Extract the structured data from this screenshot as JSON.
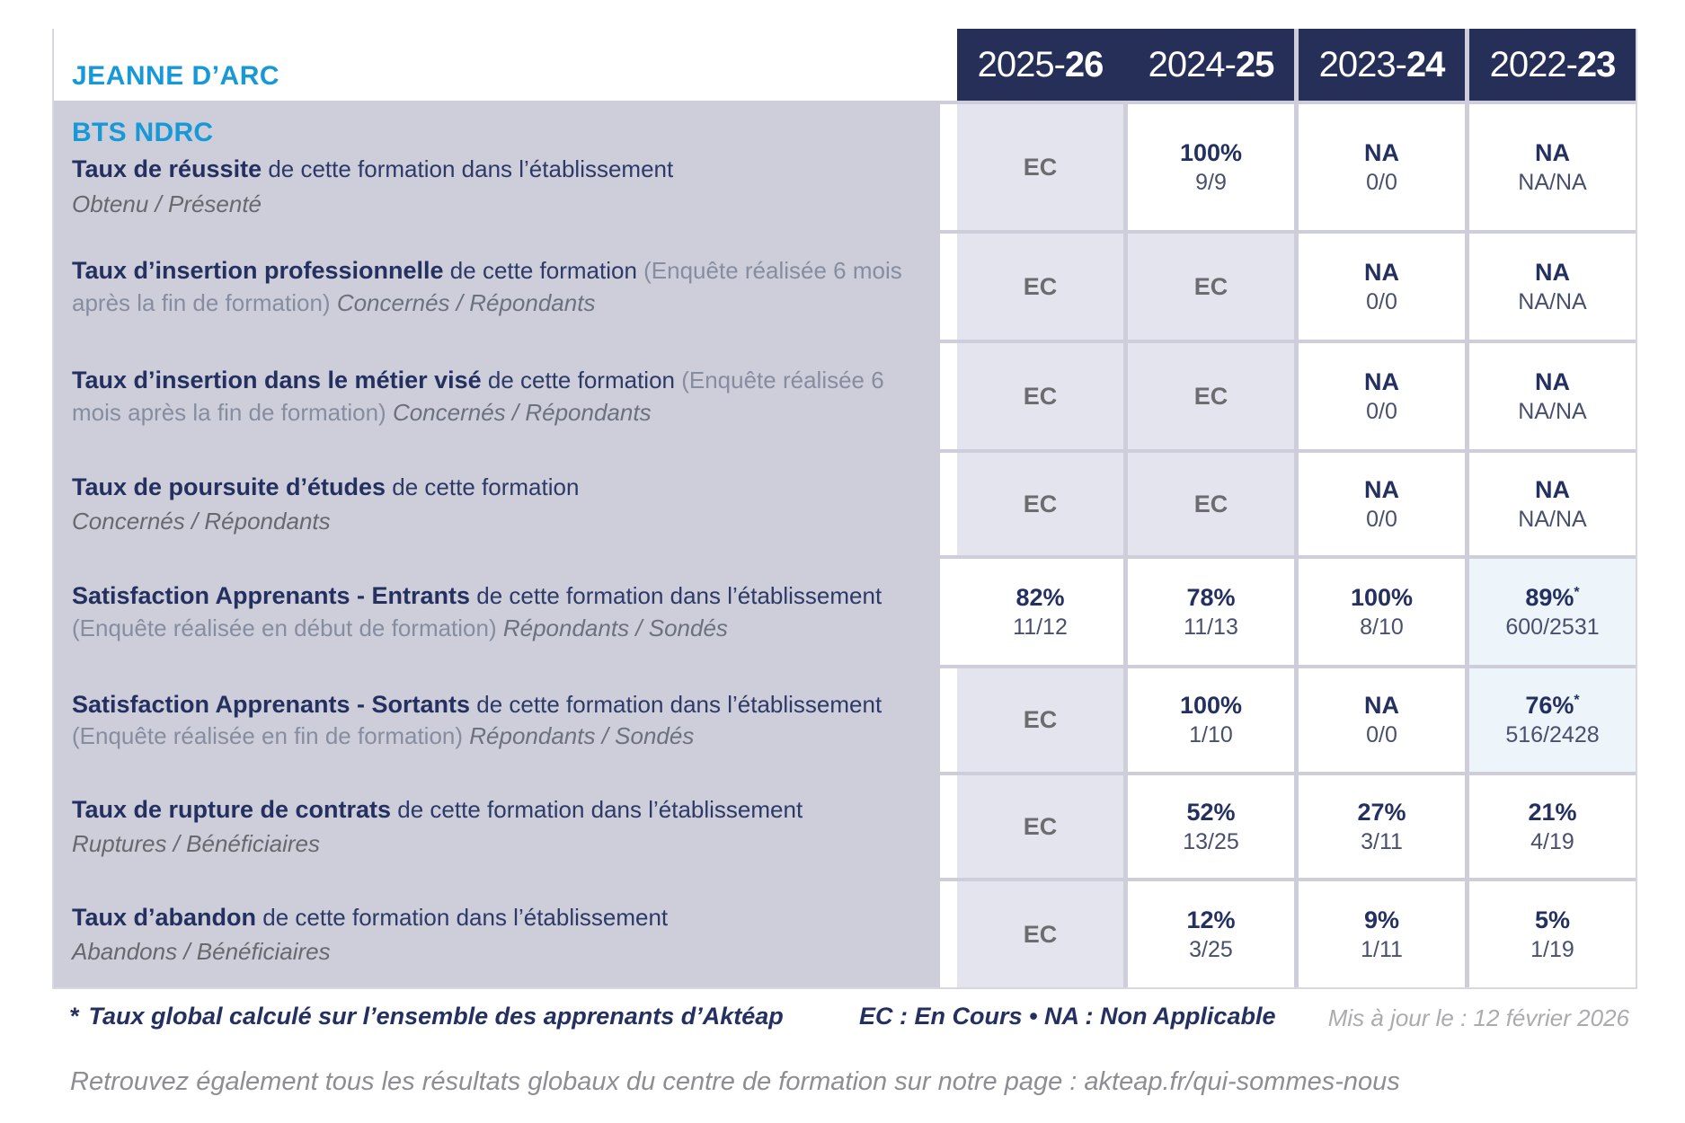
{
  "brand": {
    "name": "JEANNE D’ARC",
    "color": "#1699d6"
  },
  "columns": [
    {
      "start": "2025-",
      "end": "26"
    },
    {
      "start": "2024-",
      "end": "25"
    },
    {
      "start": "2023-",
      "end": "24"
    },
    {
      "start": "2022-",
      "end": "23"
    }
  ],
  "program": "BTS NDRC",
  "rows": [
    {
      "label": {
        "bold": "Taux de réussite",
        "rest": " de cette formation dans l’établissement",
        "paren": "",
        "tail": "",
        "sub": "Obtenu / Présenté"
      },
      "cells": [
        {
          "main": "EC",
          "frac": "",
          "star": ""
        },
        {
          "main": "100%",
          "frac": "9/9",
          "star": ""
        },
        {
          "main": "NA",
          "frac": "0/0",
          "star": ""
        },
        {
          "main": "NA",
          "frac": "NA/NA",
          "star": ""
        }
      ]
    },
    {
      "label": {
        "bold": "Taux d’insertion professionnelle",
        "rest": " de cette formation ",
        "paren": "(Enquête réalisée 6 mois après la fin de formation) ",
        "tail": "Concernés / Répondants",
        "sub": ""
      },
      "cells": [
        {
          "main": "EC",
          "frac": "",
          "star": ""
        },
        {
          "main": "EC",
          "frac": "",
          "star": ""
        },
        {
          "main": "NA",
          "frac": "0/0",
          "star": ""
        },
        {
          "main": "NA",
          "frac": "NA/NA",
          "star": ""
        }
      ]
    },
    {
      "label": {
        "bold": "Taux d’insertion dans le métier visé",
        "rest": " de cette formation ",
        "paren": "(Enquête réalisée 6 mois après la fin de formation) ",
        "tail": "Concernés / Répondants",
        "sub": ""
      },
      "cells": [
        {
          "main": "EC",
          "frac": "",
          "star": ""
        },
        {
          "main": "EC",
          "frac": "",
          "star": ""
        },
        {
          "main": "NA",
          "frac": "0/0",
          "star": ""
        },
        {
          "main": "NA",
          "frac": "NA/NA",
          "star": ""
        }
      ]
    },
    {
      "label": {
        "bold": "Taux de poursuite d’études",
        "rest": " de cette formation",
        "paren": "",
        "tail": "",
        "sub": "Concernés / Répondants"
      },
      "cells": [
        {
          "main": "EC",
          "frac": "",
          "star": ""
        },
        {
          "main": "EC",
          "frac": "",
          "star": ""
        },
        {
          "main": "NA",
          "frac": "0/0",
          "star": ""
        },
        {
          "main": "NA",
          "frac": "NA/NA",
          "star": ""
        }
      ]
    },
    {
      "label": {
        "bold": "Satisfaction Apprenants - Entrants",
        "rest": " de cette formation dans l’établissement ",
        "paren": "(Enquête réalisée en début de formation) ",
        "tail": "Répondants / Sondés",
        "sub": ""
      },
      "cells": [
        {
          "main": "82%",
          "frac": "11/12",
          "star": ""
        },
        {
          "main": "78%",
          "frac": "11/13",
          "star": ""
        },
        {
          "main": "100%",
          "frac": "8/10",
          "star": ""
        },
        {
          "main": "89%",
          "frac": "600/2531",
          "star": "*"
        }
      ]
    },
    {
      "label": {
        "bold": "Satisfaction Apprenants - Sortants",
        "rest": " de cette formation dans l’établissement ",
        "paren": "(Enquête réalisée en fin de formation) ",
        "tail": "Répondants / Sondés",
        "sub": ""
      },
      "cells": [
        {
          "main": "EC",
          "frac": "",
          "star": ""
        },
        {
          "main": "100%",
          "frac": "1/10",
          "star": ""
        },
        {
          "main": "NA",
          "frac": "0/0",
          "star": ""
        },
        {
          "main": "76%",
          "frac": "516/2428",
          "star": "*"
        }
      ]
    },
    {
      "label": {
        "bold": "Taux de rupture de contrats",
        "rest": " de cette formation dans l’établissement",
        "paren": "",
        "tail": "",
        "sub": "Ruptures / Bénéficiaires"
      },
      "cells": [
        {
          "main": "EC",
          "frac": "",
          "star": ""
        },
        {
          "main": "52%",
          "frac": "13/25",
          "star": ""
        },
        {
          "main": "27%",
          "frac": "3/11",
          "star": ""
        },
        {
          "main": "21%",
          "frac": "4/19",
          "star": ""
        }
      ]
    },
    {
      "label": {
        "bold": "Taux d’abandon",
        "rest": " de cette formation dans l’établissement",
        "paren": "",
        "tail": "",
        "sub": "Abandons / Bénéficiaires"
      },
      "cells": [
        {
          "main": "EC",
          "frac": "",
          "star": ""
        },
        {
          "main": "12%",
          "frac": "3/25",
          "star": ""
        },
        {
          "main": "9%",
          "frac": "1/11",
          "star": ""
        },
        {
          "main": "5%",
          "frac": "1/19",
          "star": ""
        }
      ]
    }
  ],
  "footer": {
    "star": "*",
    "note": "Taux global calculé sur l’ensemble des apprenants d’Aktéap",
    "legend": "EC : En Cours  •  NA : Non Applicable",
    "updated": "Mis à jour le : 12 février 2026",
    "bottom": "Retrouvez également tous les résultats globaux du centre de formation sur notre page : akteap.fr/qui-sommes-nous"
  },
  "colors": {
    "header_bg": "#262f58",
    "accent_blue": "#1699d6",
    "navy_text": "#233060",
    "ec_cell_bg": "#e4e4ee",
    "highlight_cell_bg": "#edf4fa",
    "separator": "#cdced9"
  }
}
